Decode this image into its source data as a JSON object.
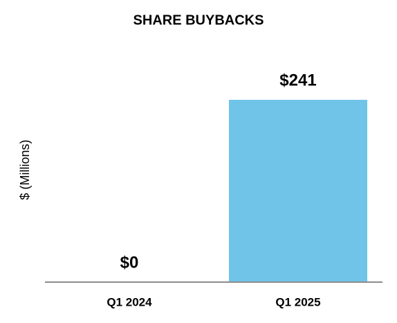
{
  "chart_data": {
    "type": "bar",
    "title": "SHARE BUYBACKS",
    "y_label": "$ (Millions)",
    "categories": [
      "Q1 2024",
      "Q1 2025"
    ],
    "values": [
      0,
      241
    ],
    "value_labels": [
      "$0",
      "$241"
    ],
    "color": "#70c4e8",
    "ylim": [
      0,
      241
    ]
  }
}
